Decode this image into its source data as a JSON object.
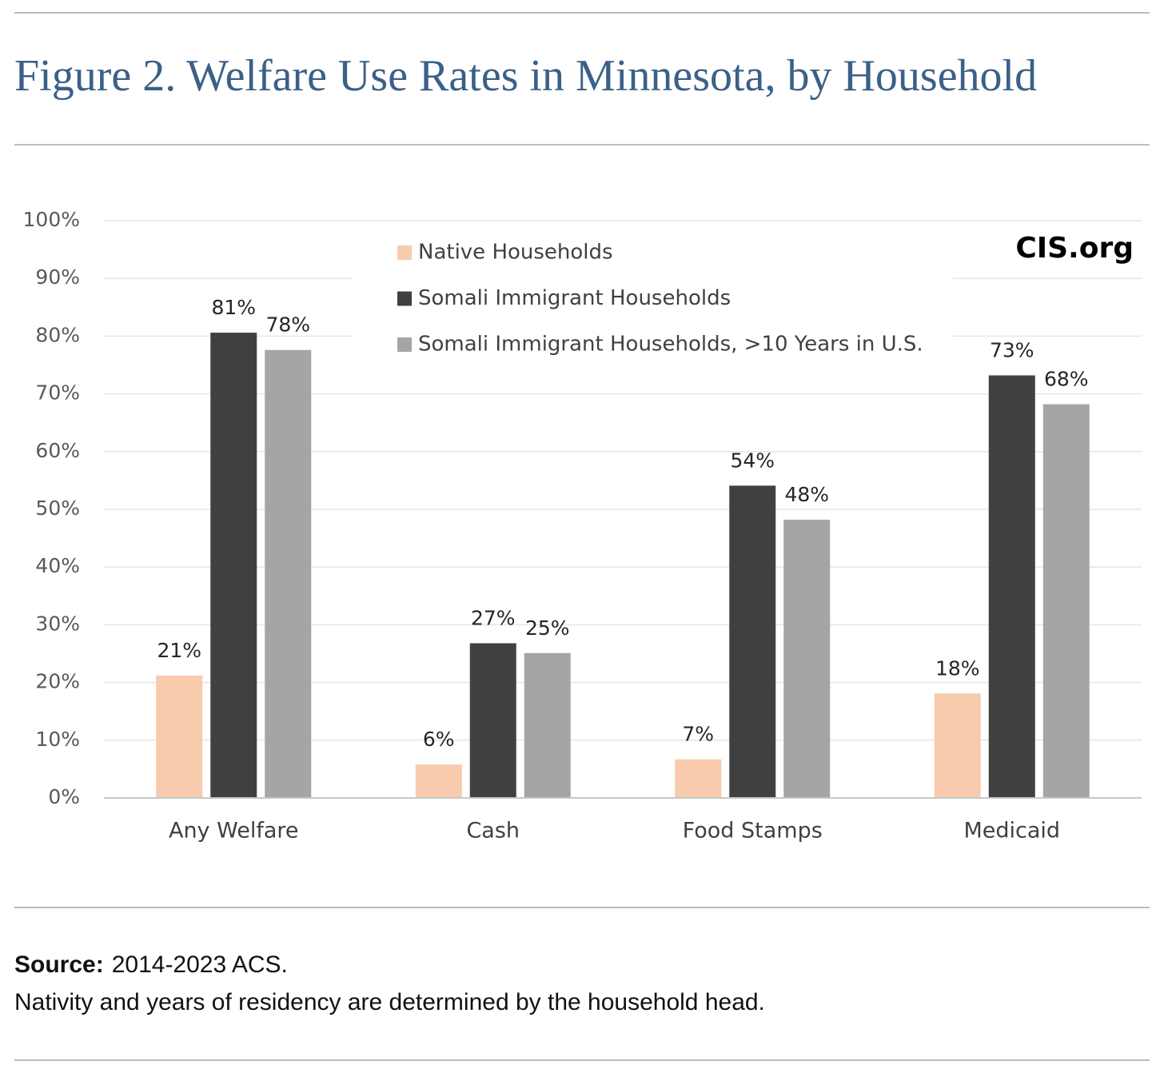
{
  "chart_data": {
    "type": "bar",
    "title": "Figure 2. Welfare Use Rates in Minnesota, by Household",
    "categories": [
      "Any Welfare",
      "Cash",
      "Food Stamps",
      "Medicaid"
    ],
    "series": [
      {
        "name": "Native Households",
        "color": "#f8cbad",
        "values": [
          21.2,
          5.8,
          6.7,
          18.1
        ],
        "value_labels": [
          "21%",
          "6%",
          "7%",
          "18%"
        ]
      },
      {
        "name": "Somali Immigrant Households",
        "color": "#404040",
        "values": [
          80.6,
          26.8,
          54.1,
          73.2
        ],
        "value_labels": [
          "81%",
          "27%",
          "54%",
          "73%"
        ]
      },
      {
        "name": "Somali Immigrant Households, >10 Years in U.S.",
        "color": "#a5a5a5",
        "values": [
          77.6,
          25.1,
          48.2,
          68.2
        ],
        "value_labels": [
          "78%",
          "25%",
          "48%",
          "68%"
        ]
      }
    ],
    "ylim": [
      0,
      100
    ],
    "yticks": [
      {
        "value": 0,
        "label": "0%"
      },
      {
        "value": 10,
        "label": "10%"
      },
      {
        "value": 20,
        "label": "20%"
      },
      {
        "value": 30,
        "label": "30%"
      },
      {
        "value": 40,
        "label": "40%"
      },
      {
        "value": 50,
        "label": "50%"
      },
      {
        "value": 60,
        "label": "60%"
      },
      {
        "value": 70,
        "label": "70%"
      },
      {
        "value": 80,
        "label": "80%"
      },
      {
        "value": 90,
        "label": "90%"
      },
      {
        "value": 100,
        "label": "100%"
      }
    ],
    "grid": true,
    "watermark": "CIS.org",
    "source_label": "Source:",
    "source": "2014-2023 ACS.",
    "note": "Nativity and years of residency are determined by the household head."
  }
}
